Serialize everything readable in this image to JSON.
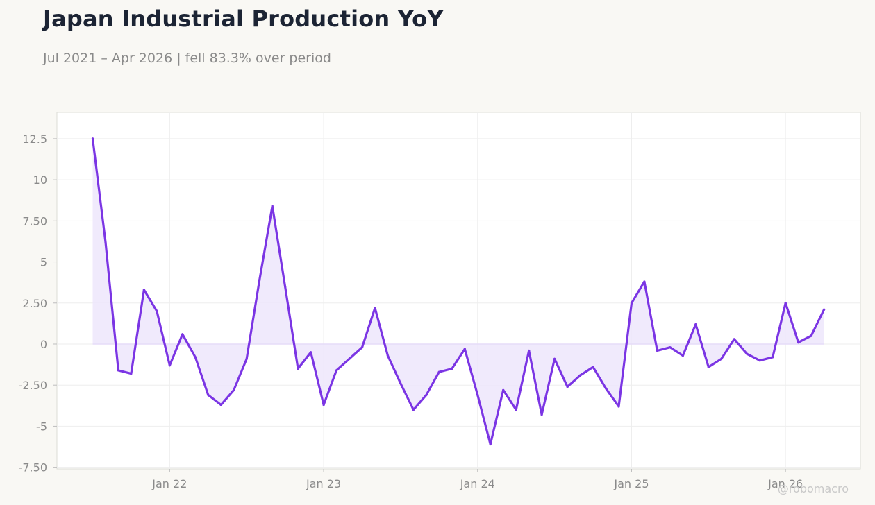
{
  "title": "Japan Industrial Production YoY",
  "subtitle": "Jul 2021 – Apr 2026 | fell 83.3% over period",
  "watermark": "@robomacro",
  "colors": {
    "background": "#f9f8f4",
    "plot_background": "#ffffff",
    "line": "#7b35e4",
    "fill": "#ede6fb",
    "grid": "#eeeeee",
    "frame": "#dcdcd6",
    "zero_line": "#e6dcf8"
  },
  "chart_data": {
    "type": "area",
    "title": "Japan Industrial Production YoY",
    "subtitle": "Jul 2021 – Apr 2026 | fell 83.3% over period",
    "xlabel": "",
    "ylabel": "",
    "x_start": "2021-07",
    "x_end": "2026-04",
    "x_ticks": [
      {
        "label": "Jan 22",
        "date": "2022-01"
      },
      {
        "label": "Jan 23",
        "date": "2023-01"
      },
      {
        "label": "Jan 24",
        "date": "2024-01"
      },
      {
        "label": "Jan 25",
        "date": "2025-01"
      },
      {
        "label": "Jan 26",
        "date": "2026-01"
      }
    ],
    "ylim": [
      -7.6,
      14.1
    ],
    "y_ticks": [
      {
        "value": 12.5,
        "label": "12.5"
      },
      {
        "value": 10,
        "label": "10"
      },
      {
        "value": 7.5,
        "label": "7.50"
      },
      {
        "value": 5,
        "label": "5"
      },
      {
        "value": 2.5,
        "label": "2.50"
      },
      {
        "value": 0,
        "label": "0"
      },
      {
        "value": -2.5,
        "label": "-2.50"
      },
      {
        "value": -5,
        "label": "-5"
      },
      {
        "value": -7.5,
        "label": "-7.50"
      }
    ],
    "grid": true,
    "fill_to_zero": true,
    "series": [
      {
        "points": [
          {
            "date": "2021-07",
            "value": 12.5
          },
          {
            "date": "2021-08",
            "value": 6.2
          },
          {
            "date": "2021-09",
            "value": -1.6
          },
          {
            "date": "2021-10",
            "value": -1.8
          },
          {
            "date": "2021-11",
            "value": 3.3
          },
          {
            "date": "2021-12",
            "value": 2.0
          },
          {
            "date": "2022-01",
            "value": -1.3
          },
          {
            "date": "2022-02",
            "value": 0.6
          },
          {
            "date": "2022-03",
            "value": -0.8
          },
          {
            "date": "2022-04",
            "value": -3.1
          },
          {
            "date": "2022-05",
            "value": -3.7
          },
          {
            "date": "2022-06",
            "value": -2.8
          },
          {
            "date": "2022-07",
            "value": -0.9
          },
          {
            "date": "2022-08",
            "value": 3.9
          },
          {
            "date": "2022-09",
            "value": 8.4
          },
          {
            "date": "2022-10",
            "value": 3.5
          },
          {
            "date": "2022-11",
            "value": -1.5
          },
          {
            "date": "2022-12",
            "value": -0.5
          },
          {
            "date": "2023-01",
            "value": -3.7
          },
          {
            "date": "2023-02",
            "value": -1.6
          },
          {
            "date": "2023-03",
            "value": -0.9
          },
          {
            "date": "2023-04",
            "value": -0.2
          },
          {
            "date": "2023-05",
            "value": 2.2
          },
          {
            "date": "2023-06",
            "value": -0.7
          },
          {
            "date": "2023-07",
            "value": -2.4
          },
          {
            "date": "2023-08",
            "value": -4.0
          },
          {
            "date": "2023-09",
            "value": -3.1
          },
          {
            "date": "2023-10",
            "value": -1.7
          },
          {
            "date": "2023-11",
            "value": -1.5
          },
          {
            "date": "2023-12",
            "value": -0.3
          },
          {
            "date": "2024-01",
            "value": -3.1
          },
          {
            "date": "2024-02",
            "value": -6.1
          },
          {
            "date": "2024-03",
            "value": -2.8
          },
          {
            "date": "2024-04",
            "value": -4.0
          },
          {
            "date": "2024-05",
            "value": -0.4
          },
          {
            "date": "2024-06",
            "value": -4.3
          },
          {
            "date": "2024-07",
            "value": -0.9
          },
          {
            "date": "2024-08",
            "value": -2.6
          },
          {
            "date": "2024-09",
            "value": -1.9
          },
          {
            "date": "2024-10",
            "value": -1.4
          },
          {
            "date": "2024-11",
            "value": -2.7
          },
          {
            "date": "2024-12",
            "value": -3.8
          },
          {
            "date": "2025-01",
            "value": 2.5
          },
          {
            "date": "2025-02",
            "value": 3.8
          },
          {
            "date": "2025-03",
            "value": -0.4
          },
          {
            "date": "2025-04",
            "value": -0.2
          },
          {
            "date": "2025-05",
            "value": -0.7
          },
          {
            "date": "2025-06",
            "value": 1.2
          },
          {
            "date": "2025-07",
            "value": -1.4
          },
          {
            "date": "2025-08",
            "value": -0.9
          },
          {
            "date": "2025-09",
            "value": 0.3
          },
          {
            "date": "2025-10",
            "value": -0.6
          },
          {
            "date": "2025-11",
            "value": -1.0
          },
          {
            "date": "2025-12",
            "value": -0.8
          },
          {
            "date": "2026-01",
            "value": 2.5
          },
          {
            "date": "2026-02",
            "value": 0.1
          },
          {
            "date": "2026-03",
            "value": 0.5
          },
          {
            "date": "2026-04",
            "value": 2.1
          }
        ]
      }
    ]
  }
}
